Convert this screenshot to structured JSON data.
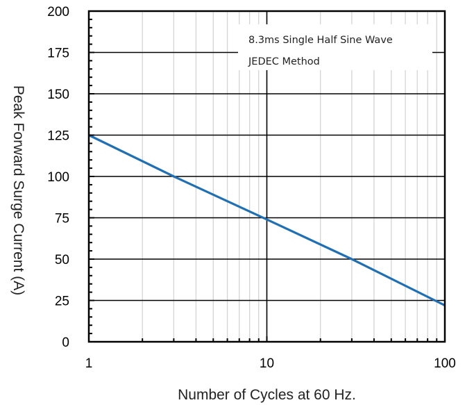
{
  "chart_data": {
    "type": "line",
    "xlabel": "Number of Cycles at 60 Hz.",
    "ylabel": "Peak Forward Surge Current (A)",
    "x_scale": "log",
    "xlim": [
      1,
      100
    ],
    "ylim": [
      0,
      200
    ],
    "x_ticks": [
      1,
      10,
      100
    ],
    "x_tick_labels": [
      "1",
      "10",
      "100"
    ],
    "y_ticks": [
      0,
      25,
      50,
      75,
      100,
      125,
      150,
      175,
      200
    ],
    "y_tick_labels": [
      "0",
      "25",
      "50",
      "75",
      "100",
      "125",
      "150",
      "175",
      "200"
    ],
    "grid": true,
    "annotation_lines": [
      "8.3ms Single Half Sine Wave",
      "JEDEC Method"
    ],
    "series": [
      {
        "x": [
          1,
          3,
          10,
          30,
          100
        ],
        "y": [
          125,
          100,
          74,
          50,
          22
        ]
      }
    ],
    "colors": {
      "line": "#1f6fb4",
      "major_grid": "#000000",
      "minor_grid": "#d4d4d4"
    }
  }
}
